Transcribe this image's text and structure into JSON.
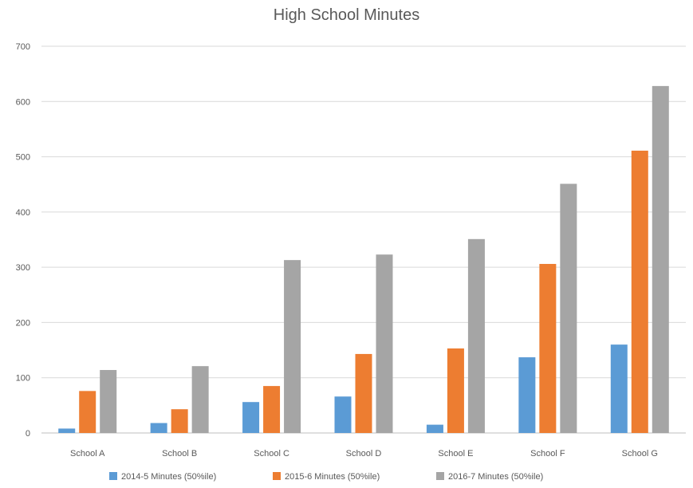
{
  "chart_data": {
    "type": "bar",
    "title": "High School Minutes",
    "xlabel": "",
    "ylabel": "",
    "ylim": [
      0,
      700
    ],
    "yticks": [
      0,
      100,
      200,
      300,
      400,
      500,
      600,
      700
    ],
    "grid": true,
    "legend_position": "bottom",
    "categories": [
      "School A",
      "School B",
      "School C",
      "School D",
      "School E",
      "School F",
      "School G"
    ],
    "series": [
      {
        "name": "2014-5 Minutes (50%ile)",
        "color": "#5b9bd5",
        "values": [
          8,
          18,
          56,
          66,
          15,
          137,
          160
        ]
      },
      {
        "name": "2015-6 Minutes (50%ile)",
        "color": "#ed7d31",
        "values": [
          76,
          43,
          85,
          143,
          153,
          306,
          511
        ]
      },
      {
        "name": "2016-7 Minutes (50%ile)",
        "color": "#a5a5a5",
        "values": [
          114,
          121,
          313,
          323,
          351,
          451,
          628
        ]
      }
    ]
  }
}
